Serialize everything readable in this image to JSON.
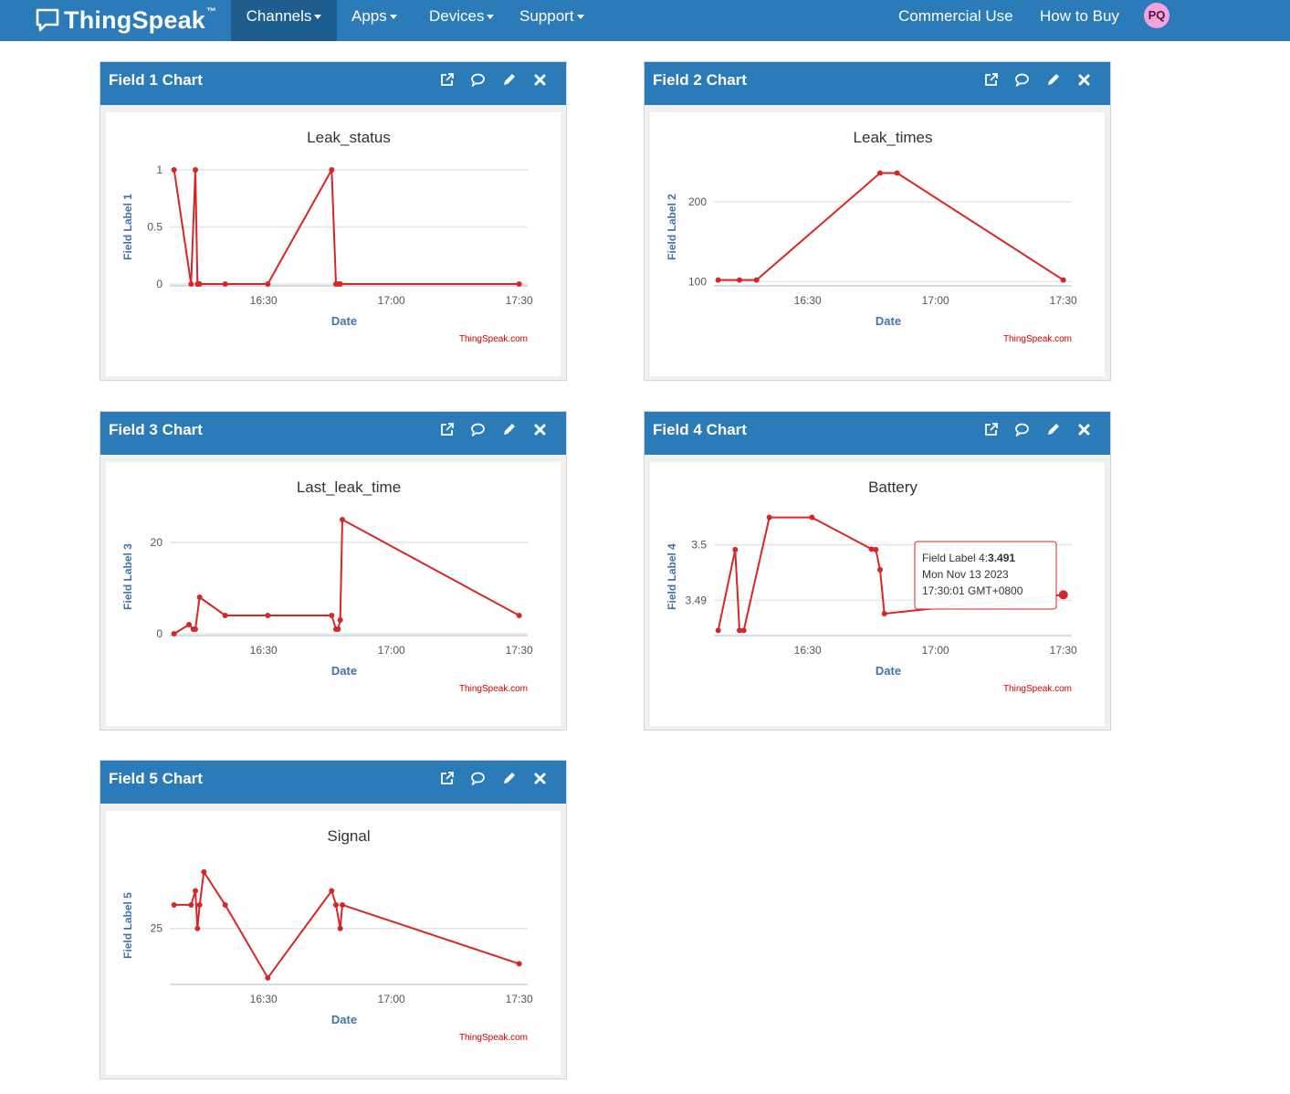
{
  "navbar": {
    "brand": "ThingSpeak",
    "brand_tm": "™",
    "items": [
      {
        "label": "Channels",
        "dropdown": true,
        "active": true
      },
      {
        "label": "Apps",
        "dropdown": true,
        "active": false
      },
      {
        "label": "Devices",
        "dropdown": true,
        "active": false
      },
      {
        "label": "Support",
        "dropdown": true,
        "active": false
      }
    ],
    "right_items": [
      {
        "label": "Commercial Use"
      },
      {
        "label": "How to Buy"
      }
    ],
    "avatar": "PQ",
    "colors": {
      "bar": "#2b7bb9",
      "active": "#1f5d8e",
      "avatar": "#f3a3dd"
    }
  },
  "panel_tools": [
    "external-link-icon",
    "comment-icon",
    "pencil-icon",
    "close-icon"
  ],
  "colors": {
    "series": "#d62728",
    "axis_title": "#4572a7",
    "grid": "#e6e6e6",
    "credits": "#cc0000"
  },
  "charts": [
    {
      "panel_title": "Field 1 Chart",
      "credits": "ThingSpeak.com",
      "chart_data": {
        "type": "line",
        "title": "Leak_status",
        "xlabel": "Date",
        "ylabel": "Field Label 1",
        "x_ticks": [
          "16:30",
          "17:00",
          "17:30"
        ],
        "y_ticks": [
          "0",
          "0.5",
          "1"
        ],
        "xlim": [
          "16:08",
          "17:32"
        ],
        "ylim": [
          0,
          1
        ],
        "grid": true,
        "legend": false,
        "series": [
          {
            "x": [
              "16:09:00",
              "16:13:00",
              "16:14:00",
              "16:14:30",
              "16:15:00",
              "16:21:00",
              "16:31:00",
              "16:46:00",
              "16:47:00",
              "16:47:30",
              "16:48:00",
              "17:30:00"
            ],
            "y": [
              1,
              0,
              1,
              0,
              0,
              0,
              0,
              1,
              0,
              0,
              0,
              0
            ]
          }
        ]
      }
    },
    {
      "panel_title": "Field 2 Chart",
      "credits": "ThingSpeak.com",
      "chart_data": {
        "type": "line",
        "title": "Leak_times",
        "xlabel": "Date",
        "ylabel": "Field Label 2",
        "x_ticks": [
          "16:30",
          "17:00",
          "17:30"
        ],
        "y_ticks": [
          "100",
          "200"
        ],
        "xlim": [
          "16:08",
          "17:32"
        ],
        "ylim": [
          97,
          240
        ],
        "grid": true,
        "legend": false,
        "series": [
          {
            "x": [
              "16:09:00",
              "16:14:00",
              "16:18:00",
              "16:47:00",
              "16:51:00",
              "17:30:00"
            ],
            "y": [
              102,
              102,
              102,
              236,
              236,
              102
            ]
          }
        ]
      }
    },
    {
      "panel_title": "Field 3 Chart",
      "credits": "ThingSpeak.com",
      "chart_data": {
        "type": "line",
        "title": "Last_leak_time",
        "xlabel": "Date",
        "ylabel": "Field Label 3",
        "x_ticks": [
          "16:30",
          "17:00",
          "17:30"
        ],
        "y_ticks": [
          "0",
          "20"
        ],
        "xlim": [
          "16:08",
          "17:32"
        ],
        "ylim": [
          0,
          25
        ],
        "grid": true,
        "legend": false,
        "series": [
          {
            "x": [
              "16:09:00",
              "16:12:30",
              "16:13:30",
              "16:14:00",
              "16:15:00",
              "16:21:00",
              "16:31:00",
              "16:46:00",
              "16:47:00",
              "16:47:30",
              "16:48:00",
              "16:48:30",
              "17:30:00"
            ],
            "y": [
              0,
              2,
              1,
              1,
              8,
              4,
              4,
              4,
              1,
              1,
              3,
              25,
              4
            ]
          }
        ]
      }
    },
    {
      "panel_title": "Field 4 Chart",
      "credits": "ThingSpeak.com",
      "tooltip": {
        "label": "Field Label 4:",
        "value": "3.491",
        "date": "Mon Nov 13 2023",
        "time": "17:30:01 GMT+0800"
      },
      "chart_data": {
        "type": "line",
        "title": "Battery",
        "xlabel": "Date",
        "ylabel": "Field Label 4",
        "x_ticks": [
          "16:30",
          "17:00",
          "17:30"
        ],
        "y_ticks": [
          "3.49",
          "3.5"
        ],
        "xlim": [
          "16:08",
          "17:32"
        ],
        "ylim": [
          3.484,
          3.5045
        ],
        "grid": true,
        "legend": false,
        "series": [
          {
            "x": [
              "16:09:00",
              "16:13:00",
              "16:14:00",
              "16:15:00",
              "16:21:00",
              "16:31:00",
              "16:45:00",
              "16:46:00",
              "16:47:00",
              "16:48:00",
              "17:30:01"
            ],
            "y": [
              3.4846,
              3.4991,
              3.4846,
              3.4846,
              3.5049,
              3.5049,
              3.4992,
              3.4991,
              3.4955,
              3.4876,
              3.491
            ]
          }
        ]
      }
    },
    {
      "panel_title": "Field 5 Chart",
      "credits": "ThingSpeak.com",
      "chart_data": {
        "type": "line",
        "title": "Signal",
        "xlabel": "Date",
        "ylabel": "Field Label 5",
        "x_ticks": [
          "16:30",
          "17:00",
          "17:30"
        ],
        "y_ticks": [
          "25"
        ],
        "xlim": [
          "16:08",
          "17:32"
        ],
        "ylim": [
          20.4,
          30.1
        ],
        "grid": true,
        "legend": false,
        "series": [
          {
            "x": [
              "16:09:00",
              "16:13:00",
              "16:14:00",
              "16:14:30",
              "16:15:00",
              "16:16:00",
              "16:21:00",
              "16:31:00",
              "16:46:00",
              "16:47:00",
              "16:48:00",
              "16:48:30",
              "17:30:00"
            ],
            "y": [
              27,
              27,
              28.2,
              25,
              27,
              29.8,
              27,
              20.8,
              28.2,
              27,
              25,
              27,
              22
            ]
          }
        ]
      }
    }
  ]
}
